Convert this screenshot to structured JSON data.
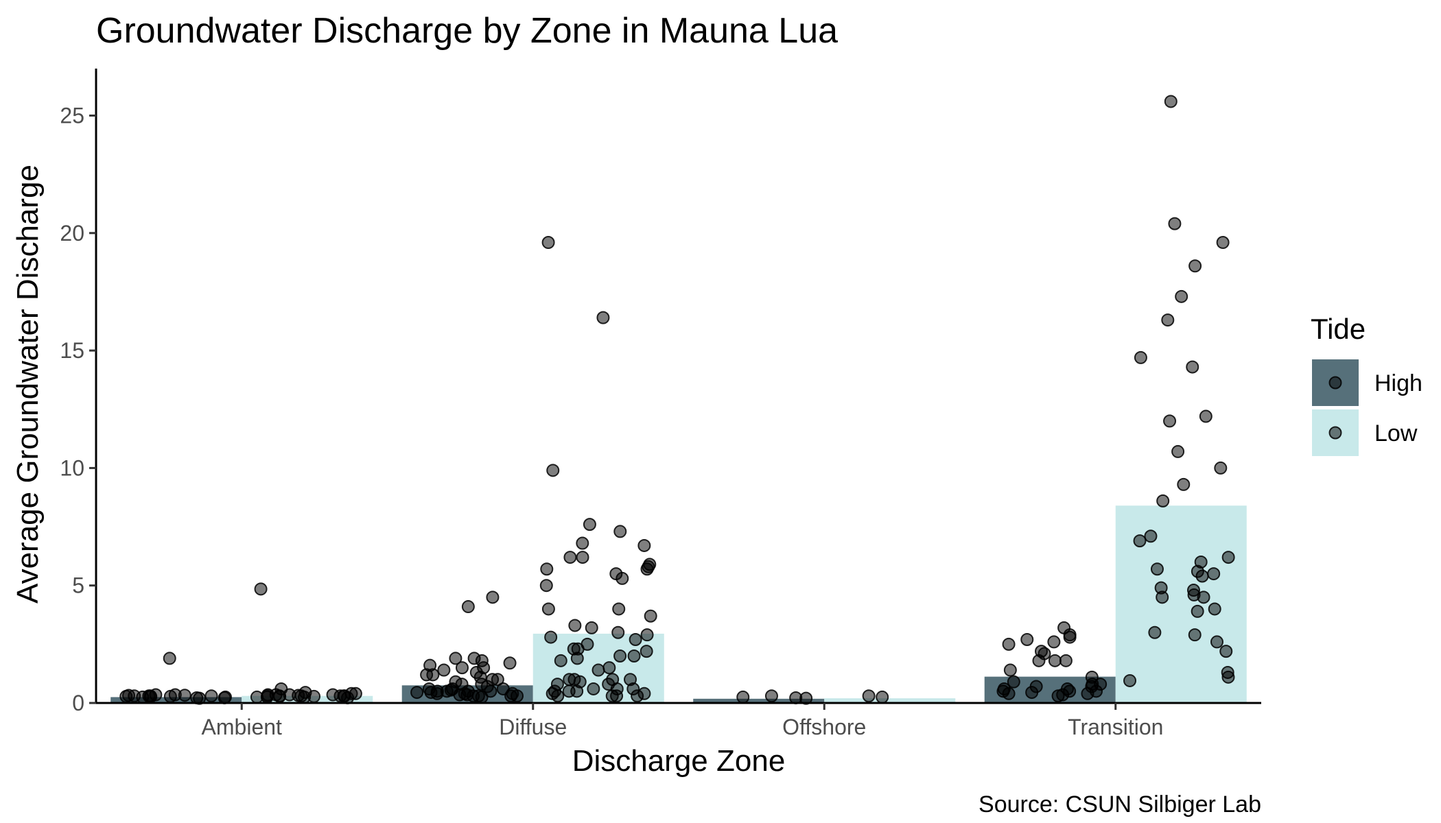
{
  "chart_data": {
    "type": "bar",
    "title": "Groundwater Discharge by Zone in Mauna Lua",
    "xlabel": "Discharge Zone",
    "ylabel": "Average Groundwater Discharge",
    "caption": "Source: CSUN Silbiger Lab",
    "categories": [
      "Ambient",
      "Diffuse",
      "Offshore",
      "Transition"
    ],
    "ylim": [
      0,
      27
    ],
    "yticks": [
      0,
      5,
      10,
      15,
      20,
      25
    ],
    "grid": false,
    "legend": {
      "title": "Tide",
      "position": "right"
    },
    "series": [
      {
        "name": "High",
        "color": "#56707a",
        "values": [
          0.25,
          0.75,
          0.18,
          1.12
        ],
        "points": [
          [
            1.9,
            0.35,
            0.3,
            0.28,
            0.25,
            0.32,
            0.22,
            0.3,
            0.27,
            0.35,
            0.2,
            0.3,
            0.25,
            0.28,
            0.33,
            0.22,
            0.3
          ],
          [
            1.8,
            1.7,
            1.5,
            1.2,
            1.0,
            0.8,
            0.6,
            0.5,
            0.45,
            0.4,
            0.35,
            0.3,
            0.3,
            0.25,
            0.5,
            0.6,
            0.4,
            0.35,
            0.3,
            0.45,
            0.55,
            0.7,
            0.9,
            1.1,
            1.3,
            1.5,
            1.9,
            1.9,
            1.6,
            1.4,
            1.2,
            1.0,
            0.8,
            0.5,
            0.4,
            0.3,
            0.6,
            0.5,
            4.5,
            4.1
          ],
          [
            0.2,
            0.22,
            0.25,
            0.3
          ],
          [
            1.8,
            2.5,
            2.8,
            2.1,
            2.2,
            3.2,
            1.4,
            1.1,
            0.8,
            0.7,
            0.6,
            0.5,
            0.45,
            0.4,
            0.35,
            0.3,
            0.5,
            0.7,
            0.9,
            1.8,
            1.8,
            2.6,
            2.7,
            2.9,
            0.6,
            0.4,
            0.8,
            0.5
          ]
        ]
      },
      {
        "name": "Low",
        "color": "#c8e9ea",
        "values": [
          0.3,
          2.95,
          0.2,
          8.4
        ],
        "points": [
          [
            0.3,
            0.35,
            0.25,
            0.4,
            0.3,
            0.28,
            0.22,
            0.32,
            0.45,
            0.35,
            0.3,
            0.25,
            0.6,
            0.3,
            0.4,
            0.35,
            0.3,
            0.28,
            0.25,
            0.3,
            0.35,
            4.85
          ],
          [
            4.0,
            6.2,
            5.7,
            5.5,
            5.0,
            3.0,
            2.5,
            1.0,
            0.8,
            0.6,
            0.4,
            0.3,
            0.5,
            2.3,
            2.0,
            1.5,
            1.9,
            1.0,
            0.9,
            0.5,
            0.3,
            4.0,
            3.7,
            3.3,
            2.3,
            7.3,
            6.8,
            6.7,
            6.2,
            5.9,
            5.8,
            5.7,
            5.3,
            2.8,
            2.0,
            1.4,
            1.0,
            0.6,
            0.3,
            19.6,
            16.4,
            9.9,
            7.6,
            3.2,
            2.9,
            2.7,
            2.2,
            1.8,
            1.0,
            0.5,
            0.3,
            0.8,
            0.6,
            0.4
          ],
          [
            0.3,
            0.25
          ],
          [
            25.6,
            20.4,
            19.6,
            18.6,
            17.3,
            16.3,
            14.7,
            14.3,
            12.2,
            12.0,
            10.7,
            10.0,
            9.3,
            8.6,
            7.1,
            6.9,
            6.2,
            6.0,
            5.7,
            5.6,
            5.5,
            5.4,
            4.9,
            4.8,
            4.6,
            4.5,
            4.5,
            4.0,
            3.9,
            3.0,
            2.9,
            2.6,
            2.2,
            1.3,
            1.1,
            0.95
          ]
        ]
      }
    ]
  }
}
